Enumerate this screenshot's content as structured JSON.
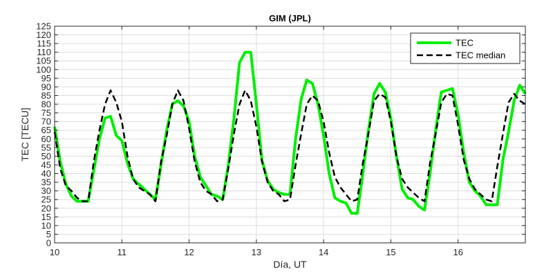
{
  "chart_data": {
    "type": "line",
    "title": "GIM (JPL)",
    "xlabel": "Día, UT",
    "ylabel": "TEC [TECU]",
    "xlim": [
      10,
      17
    ],
    "ylim": [
      0,
      125
    ],
    "xticks": [
      10,
      11,
      12,
      13,
      14,
      15,
      16
    ],
    "yticks": [
      0,
      5,
      10,
      15,
      20,
      25,
      30,
      35,
      40,
      45,
      50,
      55,
      60,
      65,
      70,
      75,
      80,
      85,
      90,
      95,
      100,
      105,
      110,
      115,
      120,
      125
    ],
    "grid": true,
    "legend": "top-right",
    "series": [
      {
        "name": "TEC",
        "color": "#00ee00",
        "style": "solid",
        "x": [
          10.0,
          10.083,
          10.167,
          10.25,
          10.333,
          10.417,
          10.5,
          10.583,
          10.667,
          10.75,
          10.833,
          10.917,
          11.0,
          11.083,
          11.167,
          11.25,
          11.333,
          11.417,
          11.5,
          11.583,
          11.667,
          11.75,
          11.833,
          11.917,
          12.0,
          12.083,
          12.167,
          12.25,
          12.333,
          12.417,
          12.5,
          12.583,
          12.667,
          12.75,
          12.833,
          12.917,
          13.0,
          13.083,
          13.167,
          13.25,
          13.333,
          13.417,
          13.5,
          13.583,
          13.667,
          13.75,
          13.833,
          13.917,
          14.0,
          14.083,
          14.167,
          14.25,
          14.333,
          14.417,
          14.5,
          14.583,
          14.667,
          14.75,
          14.833,
          14.917,
          15.0,
          15.083,
          15.167,
          15.25,
          15.333,
          15.417,
          15.5,
          15.583,
          15.667,
          15.75,
          15.833,
          15.917,
          16.0,
          16.083,
          16.167,
          16.25,
          16.333,
          16.417,
          16.5,
          16.583,
          16.667,
          16.75,
          16.833,
          16.917,
          17.0
        ],
        "values": [
          67,
          47,
          34,
          27,
          24,
          24,
          24,
          42,
          60,
          72,
          73,
          62,
          59,
          46,
          37,
          34,
          31,
          28,
          25,
          45,
          65,
          80,
          82,
          79,
          70,
          50,
          38,
          33,
          28,
          27,
          25,
          45,
          72,
          104,
          110,
          110,
          80,
          48,
          36,
          31,
          29,
          28,
          28,
          60,
          83,
          94,
          92,
          80,
          62,
          40,
          26,
          24,
          23,
          17,
          17,
          40,
          65,
          86,
          92,
          87,
          72,
          50,
          31,
          26,
          25,
          21,
          19,
          40,
          65,
          87,
          88,
          89,
          74,
          52,
          35,
          30,
          27,
          22,
          22,
          22,
          48,
          64,
          82,
          91,
          86
        ]
      },
      {
        "name": "TEC median",
        "color": "#000000",
        "style": "dashed",
        "x": [
          10.0,
          10.083,
          10.167,
          10.25,
          10.333,
          10.417,
          10.5,
          10.583,
          10.667,
          10.75,
          10.833,
          10.917,
          11.0,
          11.083,
          11.167,
          11.25,
          11.333,
          11.417,
          11.5,
          11.583,
          11.667,
          11.75,
          11.833,
          11.917,
          12.0,
          12.083,
          12.167,
          12.25,
          12.333,
          12.417,
          12.5,
          12.583,
          12.667,
          12.75,
          12.833,
          12.917,
          13.0,
          13.083,
          13.167,
          13.25,
          13.333,
          13.417,
          13.5,
          13.583,
          13.667,
          13.75,
          13.833,
          13.917,
          14.0,
          14.083,
          14.167,
          14.25,
          14.333,
          14.417,
          14.5,
          14.583,
          14.667,
          14.75,
          14.833,
          14.917,
          15.0,
          15.083,
          15.167,
          15.25,
          15.333,
          15.417,
          15.5,
          15.583,
          15.667,
          15.75,
          15.833,
          15.917,
          16.0,
          16.083,
          16.167,
          16.25,
          16.333,
          16.417,
          16.5,
          16.583,
          16.667,
          16.75,
          16.833,
          16.917,
          17.0
        ],
        "values": [
          64,
          43,
          33,
          30,
          26,
          24,
          24,
          47,
          65,
          80,
          88,
          81,
          70,
          50,
          37,
          32,
          30,
          28,
          24,
          47,
          62,
          80,
          88,
          82,
          66,
          47,
          35,
          30,
          28,
          24,
          25,
          43,
          63,
          80,
          88,
          82,
          67,
          47,
          35,
          30,
          28,
          24,
          25,
          45,
          63,
          80,
          85,
          82,
          70,
          52,
          38,
          32,
          28,
          24,
          25,
          46,
          63,
          82,
          86,
          84,
          70,
          50,
          37,
          32,
          29,
          26,
          24,
          46,
          63,
          81,
          86,
          85,
          68,
          48,
          37,
          31,
          28,
          25,
          24,
          44,
          63,
          81,
          86,
          82,
          80
        ]
      }
    ]
  }
}
